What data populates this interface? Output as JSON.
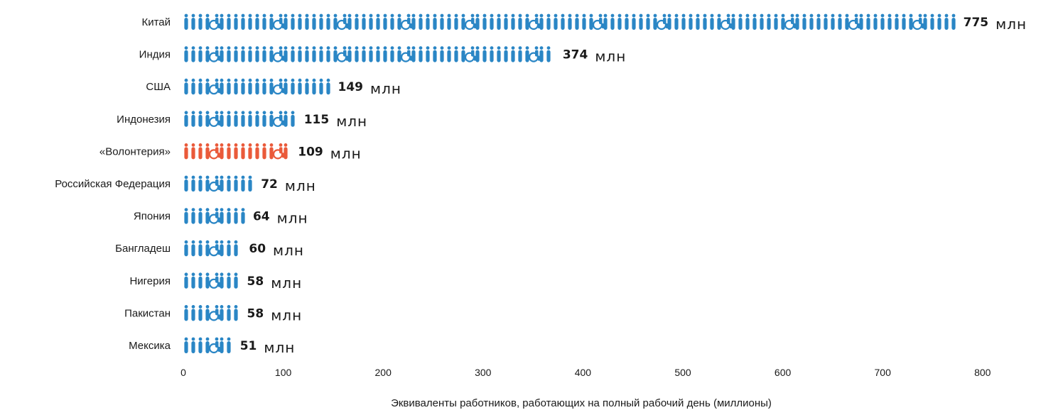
{
  "chart_data": {
    "type": "bar",
    "xlabel": "Эквиваленты работников, работающих на полный рабочий день (миллионы)",
    "unit": "млн",
    "xlim": [
      0,
      800
    ],
    "xticks": [
      "0",
      "100",
      "200",
      "300",
      "400",
      "500",
      "600",
      "700",
      "800"
    ],
    "categories": [
      "Китай",
      "Индия",
      "США",
      "Индонезия",
      "«Волонтерия»",
      "Российская Федерация",
      "Япония",
      "Бангладеш",
      "Нигерия",
      "Пакистан",
      "Мексика"
    ],
    "values": [
      775,
      374,
      149,
      115,
      109,
      72,
      64,
      60,
      58,
      58,
      51
    ],
    "highlight_category": "«Волонтерия»",
    "colors": {
      "default": "#2a86c5",
      "highlight": "#ea5a3a"
    }
  }
}
